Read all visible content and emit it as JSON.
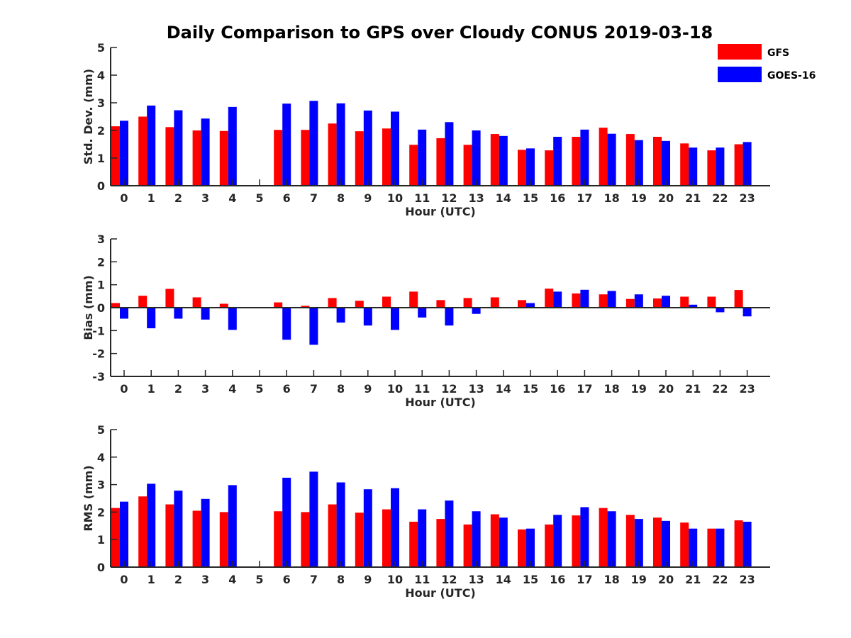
{
  "title": "Daily Comparison to GPS over Cloudy CONUS 2019-03-18",
  "legend": [
    {
      "label": "GFS",
      "color": "#ff0000"
    },
    {
      "label": "GOES-16",
      "color": "#0000ff"
    }
  ],
  "chart_data": [
    {
      "type": "bar",
      "ylabel": "Std. Dev. (mm)",
      "xlabel": "Hour (UTC)",
      "categories": [
        "0",
        "1",
        "2",
        "3",
        "4",
        "5",
        "6",
        "7",
        "8",
        "9",
        "10",
        "11",
        "12",
        "13",
        "14",
        "15",
        "16",
        "17",
        "18",
        "19",
        "20",
        "21",
        "22",
        "23"
      ],
      "ylim": [
        0,
        5
      ],
      "yticks": [
        0,
        1,
        2,
        3,
        4,
        5
      ],
      "series": [
        {
          "name": "GFS",
          "color": "#ff0000",
          "values": [
            2.15,
            2.5,
            2.12,
            2.0,
            1.98,
            null,
            2.02,
            2.02,
            2.25,
            1.97,
            2.07,
            1.48,
            1.72,
            1.48,
            1.87,
            1.3,
            1.28,
            1.77,
            2.1,
            1.87,
            1.77,
            1.53,
            1.28,
            1.5
          ]
        },
        {
          "name": "GOES-16",
          "color": "#0000ff",
          "values": [
            2.35,
            2.9,
            2.73,
            2.43,
            2.85,
            null,
            2.97,
            3.07,
            2.98,
            2.72,
            2.68,
            2.03,
            2.3,
            2.0,
            1.8,
            1.35,
            1.77,
            2.03,
            1.88,
            1.65,
            1.62,
            1.38,
            1.38,
            1.58
          ]
        }
      ]
    },
    {
      "type": "bar",
      "ylabel": "Bias (mm)",
      "xlabel": "Hour (UTC)",
      "categories": [
        "0",
        "1",
        "2",
        "3",
        "4",
        "5",
        "6",
        "7",
        "8",
        "9",
        "10",
        "11",
        "12",
        "13",
        "14",
        "15",
        "16",
        "17",
        "18",
        "19",
        "20",
        "21",
        "22",
        "23"
      ],
      "ylim": [
        -3,
        3
      ],
      "yticks": [
        -3,
        -2,
        -1,
        0,
        1,
        2,
        3
      ],
      "series": [
        {
          "name": "GFS",
          "color": "#ff0000",
          "values": [
            0.2,
            0.52,
            0.82,
            0.45,
            0.17,
            null,
            0.23,
            0.08,
            0.42,
            0.3,
            0.48,
            0.7,
            0.33,
            0.42,
            0.45,
            0.33,
            0.83,
            0.62,
            0.58,
            0.38,
            0.4,
            0.48,
            0.48,
            0.77
          ]
        },
        {
          "name": "GOES-16",
          "color": "#0000ff",
          "values": [
            -0.48,
            -0.9,
            -0.48,
            -0.52,
            -0.97,
            null,
            -1.4,
            -1.62,
            -0.65,
            -0.78,
            -0.97,
            -0.43,
            -0.78,
            -0.27,
            0,
            0.2,
            0.7,
            0.78,
            0.73,
            0.58,
            0.52,
            0.13,
            -0.2,
            -0.38
          ]
        }
      ]
    },
    {
      "type": "bar",
      "ylabel": "RMS (mm)",
      "xlabel": "Hour (UTC)",
      "categories": [
        "0",
        "1",
        "2",
        "3",
        "4",
        "5",
        "6",
        "7",
        "8",
        "9",
        "10",
        "11",
        "12",
        "13",
        "14",
        "15",
        "16",
        "17",
        "18",
        "19",
        "20",
        "21",
        "22",
        "23"
      ],
      "ylim": [
        0,
        5
      ],
      "yticks": [
        0,
        1,
        2,
        3,
        4,
        5
      ],
      "series": [
        {
          "name": "GFS",
          "color": "#ff0000",
          "values": [
            2.15,
            2.57,
            2.28,
            2.05,
            2.0,
            null,
            2.03,
            2.0,
            2.28,
            1.98,
            2.1,
            1.65,
            1.75,
            1.55,
            1.92,
            1.37,
            1.55,
            1.88,
            2.15,
            1.9,
            1.8,
            1.62,
            1.4,
            1.7
          ]
        },
        {
          "name": "GOES-16",
          "color": "#0000ff",
          "values": [
            2.38,
            3.03,
            2.78,
            2.48,
            2.98,
            null,
            3.25,
            3.47,
            3.08,
            2.83,
            2.87,
            2.1,
            2.42,
            2.03,
            1.8,
            1.4,
            1.9,
            2.18,
            2.03,
            1.75,
            1.68,
            1.4,
            1.4,
            1.65
          ]
        }
      ]
    }
  ]
}
